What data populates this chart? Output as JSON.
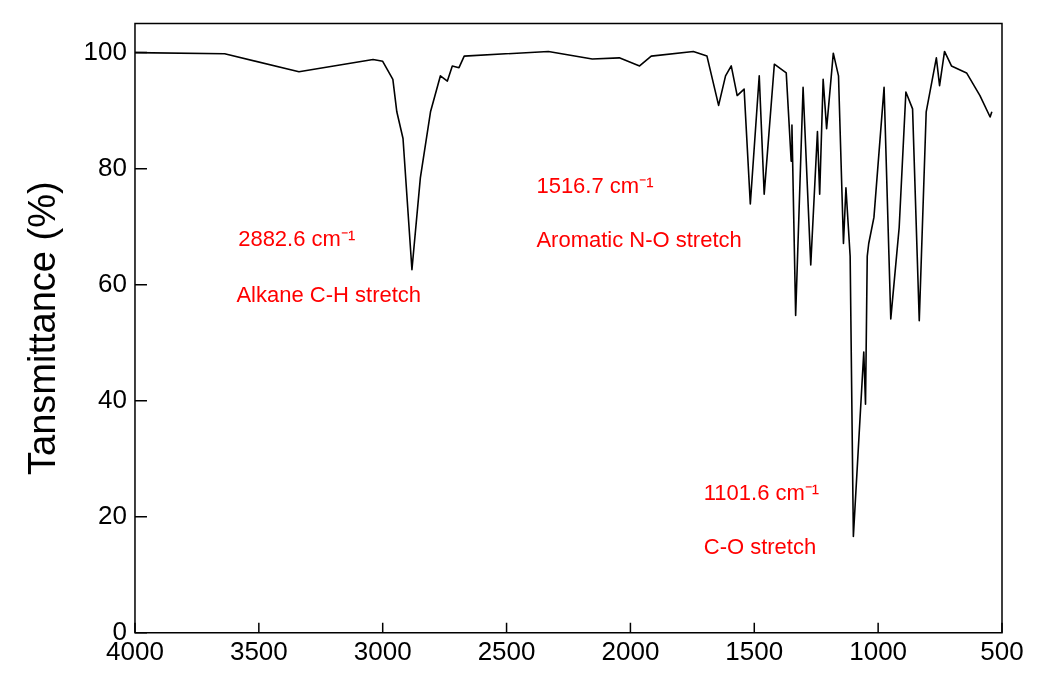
{
  "chart_data": {
    "type": "line",
    "ylabel": "Tansmittance (%)",
    "xlim": [
      4000,
      500
    ],
    "xticks": [
      4000,
      3500,
      3000,
      2500,
      2000,
      1500,
      1000,
      500
    ],
    "ylim": [
      0,
      105
    ],
    "yticks": [
      0,
      20,
      40,
      60,
      80,
      100
    ],
    "grid": false,
    "legend": false,
    "marker": "none",
    "line_style": "solid",
    "annotations": [
      "2882.6 cm⁻¹",
      "Alkane C-H stretch",
      "1516.7 cm⁻¹",
      "Aromatic N-O stretch",
      "1101.6 cm⁻¹",
      "C-O stretch"
    ],
    "series": [
      {
        "color": "#000000",
        "x": [
          4000,
          3638,
          3338,
          3039,
          3000,
          2959,
          2943,
          2918,
          2882,
          2848,
          2807,
          2767,
          2739,
          2719,
          2692,
          2671,
          2331,
          2154,
          2045,
          1963,
          1916,
          1746,
          1691,
          1644,
          1616,
          1593,
          1569,
          1541,
          1516,
          1480,
          1460,
          1419,
          1371,
          1351,
          1348,
          1333,
          1303,
          1272,
          1245,
          1236,
          1222,
          1208,
          1181,
          1160,
          1140,
          1130,
          1113,
          1100,
          1058,
          1051,
          1044,
          1038,
          1017,
          976,
          949,
          915,
          888,
          861,
          834,
          806,
          765,
          752,
          732,
          704,
          643,
          589,
          548,
          541
        ],
        "values": [
          100,
          99.8,
          96.7,
          98.8,
          98.5,
          95.4,
          89.8,
          85.2,
          62.6,
          78.4,
          89.8,
          96,
          95.1,
          97.7,
          97.4,
          99.4,
          100.2,
          98.9,
          99.1,
          97.7,
          99.4,
          100.2,
          99.4,
          90.9,
          96,
          97.7,
          92.6,
          93.7,
          73.9,
          96,
          75.6,
          98,
          96.5,
          81.3,
          87.5,
          54.7,
          94,
          63.4,
          86.4,
          75.6,
          95.4,
          86.9,
          99.9,
          96,
          67.1,
          76.7,
          64.9,
          16.6,
          48.4,
          39.4,
          64.9,
          67.1,
          71.6,
          94,
          54.1,
          69.9,
          93.2,
          90.3,
          53.8,
          89.8,
          99.1,
          94.3,
          100.2,
          97.7,
          96.5,
          92.6,
          88.9,
          89.8
        ]
      }
    ]
  }
}
